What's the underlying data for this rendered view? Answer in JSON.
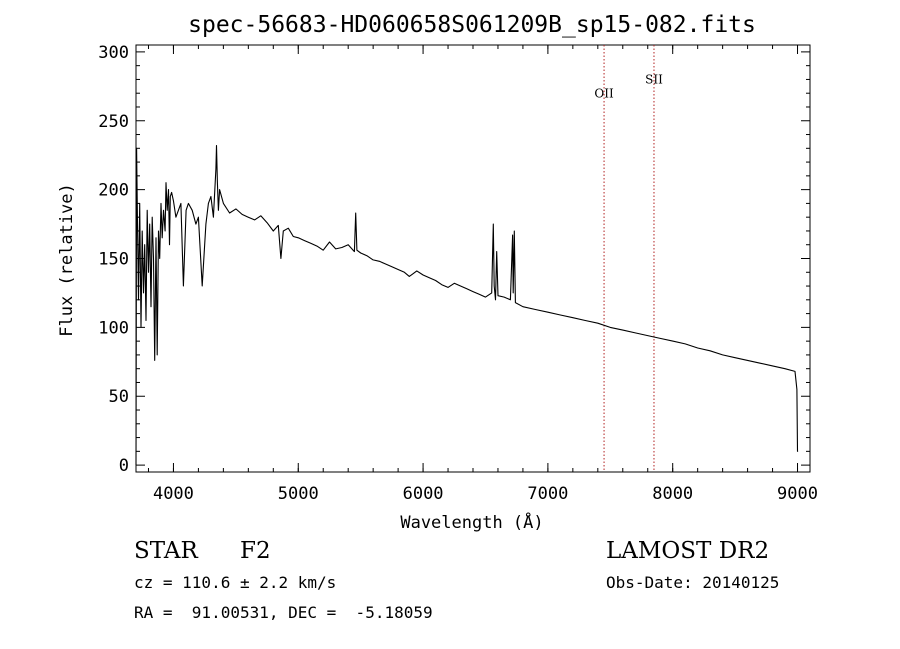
{
  "chart_data": {
    "type": "line",
    "title": "spec-56683-HD060658S061209B_sp15-082.fits",
    "xlabel": "Wavelength (Å)",
    "ylabel": "Flux (relative)",
    "xlim": [
      3700,
      9100
    ],
    "ylim": [
      -5,
      305
    ],
    "x_ticks": [
      4000,
      5000,
      6000,
      7000,
      8000,
      9000
    ],
    "y_ticks": [
      0,
      50,
      100,
      150,
      200,
      250,
      300
    ],
    "grid": false,
    "series": [
      {
        "color": "#000000",
        "x": [
          3700,
          3705,
          3712,
          3720,
          3730,
          3740,
          3750,
          3760,
          3770,
          3780,
          3790,
          3800,
          3810,
          3820,
          3830,
          3840,
          3850,
          3860,
          3870,
          3880,
          3890,
          3900,
          3910,
          3920,
          3933,
          3940,
          3950,
          3960,
          3968,
          3975,
          3985,
          4000,
          4020,
          4040,
          4060,
          4080,
          4101,
          4120,
          4150,
          4180,
          4200,
          4230,
          4260,
          4280,
          4300,
          4320,
          4340,
          4345,
          4352,
          4360,
          4370,
          4400,
          4450,
          4500,
          4550,
          4600,
          4650,
          4700,
          4750,
          4800,
          4840,
          4861,
          4880,
          4920,
          4960,
          5000,
          5050,
          5100,
          5150,
          5200,
          5250,
          5300,
          5350,
          5400,
          5450,
          5460,
          5470,
          5500,
          5550,
          5600,
          5650,
          5700,
          5750,
          5800,
          5850,
          5890,
          5920,
          5950,
          6000,
          6050,
          6100,
          6150,
          6200,
          6250,
          6300,
          6350,
          6400,
          6450,
          6500,
          6550,
          6563,
          6570,
          6580,
          6590,
          6600,
          6650,
          6700,
          6717,
          6722,
          6731,
          6740,
          6800,
          6900,
          7000,
          7100,
          7200,
          7300,
          7400,
          7500,
          7600,
          7700,
          7800,
          7900,
          8000,
          8100,
          8200,
          8300,
          8400,
          8500,
          8600,
          8700,
          8800,
          8900,
          8980,
          8995,
          9000,
          9005
        ],
        "y": [
          0,
          230,
          175,
          120,
          190,
          100,
          170,
          125,
          160,
          105,
          185,
          140,
          175,
          115,
          180,
          150,
          76,
          165,
          80,
          170,
          150,
          190,
          165,
          185,
          170,
          205,
          185,
          200,
          160,
          195,
          198,
          192,
          180,
          185,
          190,
          130,
          185,
          190,
          185,
          175,
          180,
          130,
          175,
          190,
          195,
          180,
          215,
          232,
          205,
          185,
          200,
          190,
          183,
          186,
          182,
          180,
          178,
          181,
          176,
          170,
          174,
          150,
          170,
          172,
          166,
          165,
          163,
          161,
          159,
          156,
          162,
          157,
          158,
          160,
          155,
          183,
          156,
          154,
          152,
          149,
          148,
          146,
          144,
          142,
          140,
          137,
          139,
          141,
          138,
          136,
          134,
          131,
          129,
          132,
          130,
          128,
          126,
          124,
          122,
          125,
          175,
          130,
          120,
          155,
          123,
          122,
          120,
          167,
          125,
          170,
          118,
          115,
          113,
          111,
          109,
          107,
          105,
          103,
          100,
          98,
          96,
          94,
          92,
          90,
          88,
          85,
          83,
          80,
          78,
          76,
          74,
          72,
          70,
          68,
          55,
          10,
          10
        ]
      }
    ],
    "annotations": [
      {
        "label": "OII",
        "wavelength": 7450,
        "label_flux": 267
      },
      {
        "label": "SII",
        "wavelength": 7850,
        "label_flux": 277
      }
    ]
  },
  "info": {
    "object_type": "STAR",
    "subclass": "F2",
    "survey": "LAMOST DR2",
    "cz": "cz = 110.6 ± 2.2 km/s",
    "obs_date": "Obs-Date: 20140125",
    "coords": "RA =  91.00531, DEC =  -5.18059"
  }
}
